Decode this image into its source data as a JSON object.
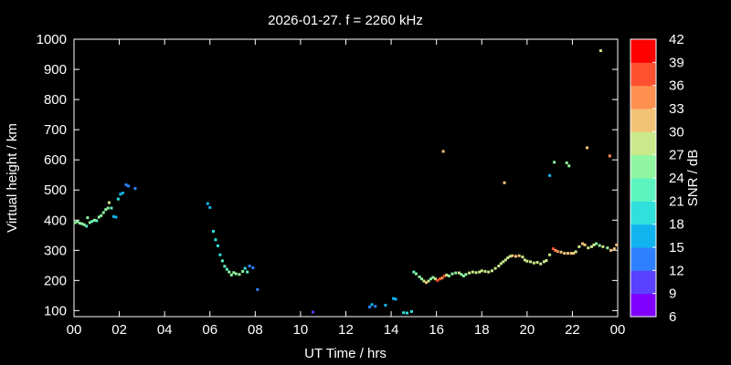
{
  "chart_data": {
    "type": "scatter",
    "title": "2026-01-27. f = 2260 kHz",
    "xlabel": "UT Time / hrs",
    "ylabel": "Virtual height / km",
    "xlim": [
      0,
      24
    ],
    "ylim": [
      80,
      1000
    ],
    "x_ticks": [
      "00",
      "02",
      "04",
      "06",
      "08",
      "10",
      "12",
      "14",
      "16",
      "18",
      "20",
      "22",
      "00"
    ],
    "y_ticks": [
      100,
      200,
      300,
      400,
      500,
      600,
      700,
      800,
      900,
      1000
    ],
    "colorbar": {
      "label": "SNR / dB",
      "ticks": [
        6,
        9,
        12,
        15,
        18,
        21,
        24,
        27,
        30,
        33,
        36,
        39,
        42
      ],
      "colors": [
        "#7f00ff",
        "#5a40ff",
        "#2f80ff",
        "#12b4f0",
        "#2fe0dd",
        "#5cf5c0",
        "#90f5a0",
        "#c9e98a",
        "#f2c377",
        "#ff9050",
        "#ff5030",
        "#ff0000"
      ]
    },
    "points": [
      {
        "x": 0.05,
        "y": 392,
        "snr": 24
      },
      {
        "x": 0.15,
        "y": 395,
        "snr": 24
      },
      {
        "x": 0.25,
        "y": 390,
        "snr": 24
      },
      {
        "x": 0.35,
        "y": 388,
        "snr": 24
      },
      {
        "x": 0.45,
        "y": 385,
        "snr": 24
      },
      {
        "x": 0.55,
        "y": 380,
        "snr": 22
      },
      {
        "x": 0.6,
        "y": 408,
        "snr": 24
      },
      {
        "x": 0.7,
        "y": 392,
        "snr": 24
      },
      {
        "x": 0.8,
        "y": 396,
        "snr": 22
      },
      {
        "x": 0.9,
        "y": 400,
        "snr": 24
      },
      {
        "x": 1.0,
        "y": 398,
        "snr": 22
      },
      {
        "x": 1.1,
        "y": 410,
        "snr": 24
      },
      {
        "x": 1.2,
        "y": 415,
        "snr": 24
      },
      {
        "x": 1.3,
        "y": 425,
        "snr": 24
      },
      {
        "x": 1.4,
        "y": 435,
        "snr": 24
      },
      {
        "x": 1.5,
        "y": 440,
        "snr": 24
      },
      {
        "x": 1.55,
        "y": 458,
        "snr": 27
      },
      {
        "x": 1.65,
        "y": 440,
        "snr": 22
      },
      {
        "x": 1.75,
        "y": 412,
        "snr": 16
      },
      {
        "x": 1.85,
        "y": 410,
        "snr": 16
      },
      {
        "x": 1.95,
        "y": 470,
        "snr": 18
      },
      {
        "x": 2.05,
        "y": 486,
        "snr": 15
      },
      {
        "x": 2.15,
        "y": 490,
        "snr": 15
      },
      {
        "x": 2.3,
        "y": 517,
        "snr": 12
      },
      {
        "x": 2.4,
        "y": 513,
        "snr": 12
      },
      {
        "x": 2.7,
        "y": 505,
        "snr": 12
      },
      {
        "x": 5.9,
        "y": 455,
        "snr": 16
      },
      {
        "x": 6.0,
        "y": 442,
        "snr": 16
      },
      {
        "x": 6.15,
        "y": 363,
        "snr": 19
      },
      {
        "x": 6.25,
        "y": 335,
        "snr": 19
      },
      {
        "x": 6.35,
        "y": 315,
        "snr": 19
      },
      {
        "x": 6.45,
        "y": 285,
        "snr": 19
      },
      {
        "x": 6.55,
        "y": 265,
        "snr": 21
      },
      {
        "x": 6.65,
        "y": 247,
        "snr": 22
      },
      {
        "x": 6.75,
        "y": 237,
        "snr": 22
      },
      {
        "x": 6.85,
        "y": 228,
        "snr": 24
      },
      {
        "x": 6.95,
        "y": 218,
        "snr": 24
      },
      {
        "x": 7.05,
        "y": 226,
        "snr": 24
      },
      {
        "x": 7.15,
        "y": 222,
        "snr": 24
      },
      {
        "x": 7.3,
        "y": 220,
        "snr": 24
      },
      {
        "x": 7.45,
        "y": 230,
        "snr": 24
      },
      {
        "x": 7.55,
        "y": 240,
        "snr": 20
      },
      {
        "x": 7.65,
        "y": 228,
        "snr": 22
      },
      {
        "x": 7.75,
        "y": 248,
        "snr": 12
      },
      {
        "x": 7.9,
        "y": 242,
        "snr": 12
      },
      {
        "x": 8.1,
        "y": 170,
        "snr": 12
      },
      {
        "x": 10.55,
        "y": 95,
        "snr": 9
      },
      {
        "x": 13.05,
        "y": 112,
        "snr": 12
      },
      {
        "x": 13.15,
        "y": 120,
        "snr": 15
      },
      {
        "x": 13.3,
        "y": 114,
        "snr": 12
      },
      {
        "x": 13.75,
        "y": 118,
        "snr": 15
      },
      {
        "x": 14.1,
        "y": 140,
        "snr": 15
      },
      {
        "x": 14.2,
        "y": 138,
        "snr": 15
      },
      {
        "x": 14.55,
        "y": 93,
        "snr": 18
      },
      {
        "x": 14.7,
        "y": 92,
        "snr": 18
      },
      {
        "x": 14.9,
        "y": 97,
        "snr": 18
      },
      {
        "x": 15.0,
        "y": 228,
        "snr": 22
      },
      {
        "x": 15.1,
        "y": 222,
        "snr": 24
      },
      {
        "x": 15.25,
        "y": 212,
        "snr": 24
      },
      {
        "x": 15.35,
        "y": 205,
        "snr": 24
      },
      {
        "x": 15.45,
        "y": 198,
        "snr": 27
      },
      {
        "x": 15.55,
        "y": 193,
        "snr": 30
      },
      {
        "x": 15.65,
        "y": 198,
        "snr": 27
      },
      {
        "x": 15.75,
        "y": 205,
        "snr": 24
      },
      {
        "x": 15.85,
        "y": 210,
        "snr": 24
      },
      {
        "x": 15.95,
        "y": 205,
        "snr": 27
      },
      {
        "x": 16.05,
        "y": 200,
        "snr": 36
      },
      {
        "x": 16.15,
        "y": 205,
        "snr": 36
      },
      {
        "x": 16.25,
        "y": 208,
        "snr": 33
      },
      {
        "x": 16.35,
        "y": 215,
        "snr": 36
      },
      {
        "x": 16.45,
        "y": 218,
        "snr": 27
      },
      {
        "x": 16.55,
        "y": 215,
        "snr": 24
      },
      {
        "x": 16.7,
        "y": 222,
        "snr": 24
      },
      {
        "x": 16.85,
        "y": 225,
        "snr": 24
      },
      {
        "x": 17.0,
        "y": 225,
        "snr": 27
      },
      {
        "x": 17.1,
        "y": 220,
        "snr": 24
      },
      {
        "x": 17.2,
        "y": 215,
        "snr": 24
      },
      {
        "x": 17.3,
        "y": 220,
        "snr": 24
      },
      {
        "x": 17.45,
        "y": 225,
        "snr": 27
      },
      {
        "x": 17.6,
        "y": 228,
        "snr": 27
      },
      {
        "x": 17.75,
        "y": 226,
        "snr": 27
      },
      {
        "x": 17.9,
        "y": 228,
        "snr": 27
      },
      {
        "x": 18.0,
        "y": 232,
        "snr": 27
      },
      {
        "x": 18.15,
        "y": 230,
        "snr": 27
      },
      {
        "x": 18.3,
        "y": 228,
        "snr": 27
      },
      {
        "x": 18.45,
        "y": 232,
        "snr": 27
      },
      {
        "x": 18.6,
        "y": 240,
        "snr": 27
      },
      {
        "x": 18.75,
        "y": 248,
        "snr": 27
      },
      {
        "x": 18.85,
        "y": 256,
        "snr": 27
      },
      {
        "x": 18.95,
        "y": 262,
        "snr": 27
      },
      {
        "x": 19.05,
        "y": 268,
        "snr": 27
      },
      {
        "x": 19.15,
        "y": 275,
        "snr": 27
      },
      {
        "x": 19.25,
        "y": 280,
        "snr": 27
      },
      {
        "x": 19.35,
        "y": 282,
        "snr": 30
      },
      {
        "x": 19.5,
        "y": 280,
        "snr": 30
      },
      {
        "x": 19.65,
        "y": 282,
        "snr": 30
      },
      {
        "x": 19.8,
        "y": 278,
        "snr": 27
      },
      {
        "x": 19.9,
        "y": 268,
        "snr": 27
      },
      {
        "x": 20.0,
        "y": 264,
        "snr": 27
      },
      {
        "x": 20.15,
        "y": 262,
        "snr": 27
      },
      {
        "x": 20.3,
        "y": 258,
        "snr": 27
      },
      {
        "x": 20.45,
        "y": 260,
        "snr": 27
      },
      {
        "x": 20.6,
        "y": 255,
        "snr": 27
      },
      {
        "x": 20.75,
        "y": 262,
        "snr": 27
      },
      {
        "x": 20.85,
        "y": 266,
        "snr": 27
      },
      {
        "x": 21.0,
        "y": 285,
        "snr": 27
      },
      {
        "x": 21.15,
        "y": 305,
        "snr": 36
      },
      {
        "x": 21.25,
        "y": 300,
        "snr": 33
      },
      {
        "x": 21.35,
        "y": 296,
        "snr": 33
      },
      {
        "x": 21.5,
        "y": 294,
        "snr": 30
      },
      {
        "x": 21.65,
        "y": 290,
        "snr": 30
      },
      {
        "x": 21.8,
        "y": 290,
        "snr": 30
      },
      {
        "x": 21.95,
        "y": 290,
        "snr": 30
      },
      {
        "x": 22.05,
        "y": 290,
        "snr": 30
      },
      {
        "x": 22.15,
        "y": 295,
        "snr": 27
      },
      {
        "x": 22.3,
        "y": 312,
        "snr": 27
      },
      {
        "x": 22.45,
        "y": 322,
        "snr": 30
      },
      {
        "x": 22.55,
        "y": 318,
        "snr": 30
      },
      {
        "x": 22.7,
        "y": 308,
        "snr": 27
      },
      {
        "x": 22.85,
        "y": 312,
        "snr": 27
      },
      {
        "x": 22.95,
        "y": 318,
        "snr": 27
      },
      {
        "x": 23.05,
        "y": 322,
        "snr": 24
      },
      {
        "x": 23.2,
        "y": 316,
        "snr": 24
      },
      {
        "x": 23.35,
        "y": 312,
        "snr": 27
      },
      {
        "x": 23.55,
        "y": 308,
        "snr": 24
      },
      {
        "x": 23.7,
        "y": 300,
        "snr": 30
      },
      {
        "x": 23.85,
        "y": 305,
        "snr": 30
      },
      {
        "x": 23.95,
        "y": 318,
        "snr": 30
      },
      {
        "x": 16.3,
        "y": 628,
        "snr": 30
      },
      {
        "x": 19.0,
        "y": 524,
        "snr": 30
      },
      {
        "x": 21.0,
        "y": 548,
        "snr": 16
      },
      {
        "x": 21.2,
        "y": 592,
        "snr": 24
      },
      {
        "x": 21.75,
        "y": 590,
        "snr": 24
      },
      {
        "x": 21.85,
        "y": 580,
        "snr": 24
      },
      {
        "x": 22.65,
        "y": 640,
        "snr": 30
      },
      {
        "x": 23.25,
        "y": 962,
        "snr": 27
      },
      {
        "x": 23.65,
        "y": 613,
        "snr": 33
      }
    ]
  }
}
